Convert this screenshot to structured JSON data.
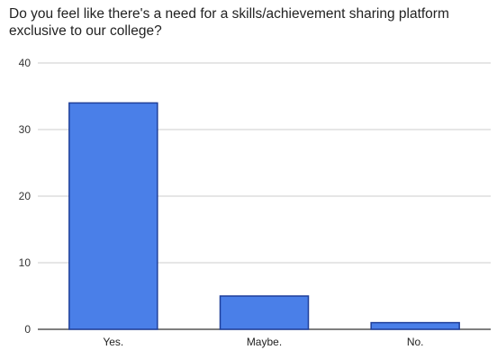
{
  "chart_data": {
    "type": "bar",
    "title_lines": [
      "Do you feel like there's a need for a skills/achievement sharing platform",
      "exclusive to our college?"
    ],
    "categories": [
      "Yes.",
      "Maybe.",
      "No."
    ],
    "values": [
      34,
      5,
      1
    ],
    "ylim": [
      0,
      40
    ],
    "yticks": [
      0,
      10,
      20,
      30,
      40
    ],
    "grid": true,
    "legend": "none",
    "bar_color": "#4a7fe8",
    "bar_stroke": "#1f3f9a"
  }
}
